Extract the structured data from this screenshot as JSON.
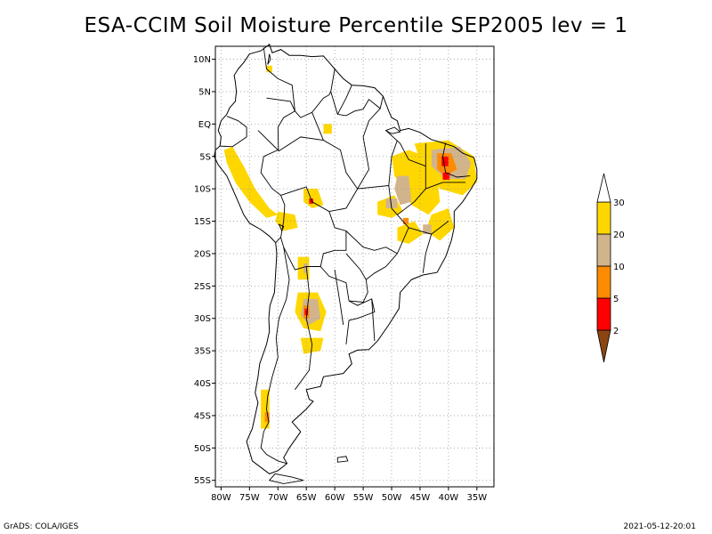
{
  "title": "ESA-CCIM Soil Moisture Percentile SEP2005 lev = 1",
  "footer": {
    "left": "GrADS: COLA/IGES",
    "right": "2021-05-12-20:01"
  },
  "chart_data": {
    "type": "heatmap",
    "title": "ESA-CCIM Soil Moisture Percentile SEP2005 lev = 1",
    "xlim": [
      -81,
      -32
    ],
    "ylim": [
      -56,
      12
    ],
    "grid": true,
    "x_ticks": [
      {
        "value": -80,
        "label": "80W"
      },
      {
        "value": -75,
        "label": "75W"
      },
      {
        "value": -70,
        "label": "70W"
      },
      {
        "value": -65,
        "label": "65W"
      },
      {
        "value": -60,
        "label": "60W"
      },
      {
        "value": -55,
        "label": "55W"
      },
      {
        "value": -50,
        "label": "50W"
      },
      {
        "value": -45,
        "label": "45W"
      },
      {
        "value": -40,
        "label": "40W"
      },
      {
        "value": -35,
        "label": "35W"
      }
    ],
    "y_ticks": [
      {
        "value": 10,
        "label": "10N"
      },
      {
        "value": 5,
        "label": "5N"
      },
      {
        "value": 0,
        "label": "EQ"
      },
      {
        "value": -5,
        "label": "5S"
      },
      {
        "value": -10,
        "label": "10S"
      },
      {
        "value": -15,
        "label": "15S"
      },
      {
        "value": -20,
        "label": "20S"
      },
      {
        "value": -25,
        "label": "25S"
      },
      {
        "value": -30,
        "label": "30S"
      },
      {
        "value": -35,
        "label": "35S"
      },
      {
        "value": -40,
        "label": "40S"
      },
      {
        "value": -45,
        "label": "45S"
      },
      {
        "value": -50,
        "label": "50S"
      },
      {
        "value": -55,
        "label": "55S"
      }
    ],
    "legend": {
      "placement": "right",
      "levels": [
        "2",
        "5",
        "10",
        "20",
        "30"
      ],
      "colors": [
        "#8b4513",
        "#ff0000",
        "#ff8c00",
        "#d2b48c",
        "#ffd700",
        "#ffffff"
      ]
    },
    "colors": {
      "gt20": "#ffd700",
      "10-20": "#d2b48c",
      "5-10": "#ff8c00",
      "2-5": "#ff0000",
      "lt2": "#8b4513"
    },
    "regions": [
      {
        "cls": "gt20",
        "poly": [
          [
            -79.5,
            -4
          ],
          [
            -78,
            -3.5
          ],
          [
            -76,
            -6.5
          ],
          [
            -74,
            -10
          ],
          [
            -71.5,
            -13
          ],
          [
            -70,
            -14
          ],
          [
            -72,
            -14.5
          ],
          [
            -75,
            -12
          ],
          [
            -77.5,
            -9
          ],
          [
            -79,
            -6
          ]
        ]
      },
      {
        "cls": "gt20",
        "poly": [
          [
            -70,
            -13.5
          ],
          [
            -67,
            -14
          ],
          [
            -66.5,
            -16
          ],
          [
            -69,
            -16.5
          ],
          [
            -70.5,
            -15
          ]
        ]
      },
      {
        "cls": "gt20",
        "poly": [
          [
            -65.5,
            -10
          ],
          [
            -63,
            -10
          ],
          [
            -62,
            -12.5
          ],
          [
            -64,
            -13
          ],
          [
            -65.5,
            -12
          ]
        ]
      },
      {
        "cls": "gt20",
        "poly": [
          [
            -52.5,
            -12
          ],
          [
            -49.5,
            -11
          ],
          [
            -48,
            -13.5
          ],
          [
            -50,
            -14.5
          ],
          [
            -52.5,
            -14
          ]
        ]
      },
      {
        "cls": "gt20",
        "poly": [
          [
            -50,
            -5
          ],
          [
            -47,
            -4
          ],
          [
            -44,
            -5
          ],
          [
            -42,
            -8
          ],
          [
            -41.5,
            -12
          ],
          [
            -43.5,
            -14
          ],
          [
            -46.5,
            -12.5
          ],
          [
            -48,
            -10
          ],
          [
            -49.5,
            -8
          ]
        ]
      },
      {
        "cls": "gt20",
        "poly": [
          [
            -43,
            -14
          ],
          [
            -40,
            -13
          ],
          [
            -39,
            -16
          ],
          [
            -41.5,
            -18
          ],
          [
            -44,
            -16.5
          ]
        ]
      },
      {
        "cls": "gt20",
        "poly": [
          [
            -49,
            -16
          ],
          [
            -46,
            -15
          ],
          [
            -44.5,
            -17
          ],
          [
            -47,
            -18.5
          ],
          [
            -49,
            -18
          ]
        ]
      },
      {
        "cls": "gt20",
        "poly": [
          [
            -46,
            -3
          ],
          [
            -40,
            -2.5
          ],
          [
            -35.5,
            -5
          ],
          [
            -35,
            -9
          ],
          [
            -37.5,
            -11
          ],
          [
            -41.5,
            -10
          ],
          [
            -44.5,
            -7
          ]
        ]
      },
      {
        "cls": "gt20",
        "poly": [
          [
            -66.5,
            -26
          ],
          [
            -63,
            -26
          ],
          [
            -61.5,
            -29
          ],
          [
            -62.5,
            -32
          ],
          [
            -65.5,
            -31.5
          ],
          [
            -67,
            -29
          ]
        ]
      },
      {
        "cls": "gt20",
        "poly": [
          [
            -66,
            -33
          ],
          [
            -62,
            -33
          ],
          [
            -62.5,
            -35
          ],
          [
            -65.5,
            -35.5
          ]
        ]
      },
      {
        "cls": "gt20",
        "poly": [
          [
            -66.5,
            -20.5
          ],
          [
            -64.5,
            -20.5
          ],
          [
            -64.5,
            -24
          ],
          [
            -66.5,
            -24
          ]
        ]
      },
      {
        "cls": "gt20",
        "poly": [
          [
            -73,
            -41
          ],
          [
            -71.5,
            -41
          ],
          [
            -71.5,
            -47
          ],
          [
            -73,
            -47
          ]
        ]
      },
      {
        "cls": "gt20",
        "poly": [
          [
            -62,
            0
          ],
          [
            -60.5,
            0
          ],
          [
            -60.5,
            -1.5
          ],
          [
            -62,
            -1.5
          ]
        ]
      },
      {
        "cls": "gt20",
        "poly": [
          [
            -72,
            9
          ],
          [
            -71,
            9
          ],
          [
            -71,
            8
          ],
          [
            -72,
            8
          ]
        ]
      },
      {
        "cls": "10-20",
        "poly": [
          [
            -49,
            -8
          ],
          [
            -47,
            -8
          ],
          [
            -46.5,
            -12
          ],
          [
            -48.5,
            -12.5
          ],
          [
            -49.5,
            -10
          ]
        ]
      },
      {
        "cls": "10-20",
        "poly": [
          [
            -51,
            -11.5
          ],
          [
            -49,
            -11.5
          ],
          [
            -49,
            -13
          ],
          [
            -51,
            -13
          ]
        ]
      },
      {
        "cls": "10-20",
        "poly": [
          [
            -43,
            -4
          ],
          [
            -38,
            -3.5
          ],
          [
            -36,
            -6
          ],
          [
            -37,
            -8.5
          ],
          [
            -40.5,
            -8.5
          ],
          [
            -43,
            -6.5
          ]
        ]
      },
      {
        "cls": "10-20",
        "poly": [
          [
            -44.5,
            -15.5
          ],
          [
            -43,
            -15.5
          ],
          [
            -43,
            -17
          ],
          [
            -44.5,
            -17
          ]
        ]
      },
      {
        "cls": "10-20",
        "poly": [
          [
            -65.5,
            -27
          ],
          [
            -63,
            -27
          ],
          [
            -62.5,
            -30
          ],
          [
            -64.5,
            -31
          ],
          [
            -66,
            -29.5
          ]
        ]
      },
      {
        "cls": "10-20",
        "poly": [
          [
            -65.5,
            -21.5
          ],
          [
            -64.8,
            -21.5
          ],
          [
            -64.8,
            -23
          ],
          [
            -65.5,
            -23
          ]
        ]
      },
      {
        "cls": "5-10",
        "poly": [
          [
            -42,
            -4.5
          ],
          [
            -39.5,
            -4.5
          ],
          [
            -38.5,
            -7
          ],
          [
            -40.5,
            -8
          ],
          [
            -42,
            -7
          ]
        ]
      },
      {
        "cls": "5-10",
        "poly": [
          [
            -65.5,
            -28
          ],
          [
            -64.5,
            -28
          ],
          [
            -64.5,
            -30
          ],
          [
            -65.5,
            -30
          ]
        ]
      },
      {
        "cls": "5-10",
        "poly": [
          [
            -72.3,
            -44.5
          ],
          [
            -71.5,
            -44.5
          ],
          [
            -71.5,
            -46
          ],
          [
            -72.3,
            -46
          ]
        ]
      },
      {
        "cls": "5-10",
        "poly": [
          [
            -48,
            -14.5
          ],
          [
            -47,
            -14.5
          ],
          [
            -47,
            -15.5
          ],
          [
            -48,
            -15.5
          ]
        ]
      },
      {
        "cls": "2-5",
        "poly": [
          [
            -41.2,
            -5
          ],
          [
            -40,
            -5
          ],
          [
            -40,
            -6.5
          ],
          [
            -41.2,
            -6.5
          ]
        ]
      },
      {
        "cls": "2-5",
        "poly": [
          [
            -41,
            -7.5
          ],
          [
            -39.8,
            -7.5
          ],
          [
            -39.8,
            -8.6
          ],
          [
            -41,
            -8.6
          ]
        ]
      },
      {
        "cls": "2-5",
        "poly": [
          [
            -64.5,
            -11.5
          ],
          [
            -63.8,
            -11.5
          ],
          [
            -63.8,
            -12.3
          ],
          [
            -64.5,
            -12.3
          ]
        ]
      },
      {
        "cls": "2-5",
        "poly": [
          [
            -65.3,
            -28.5
          ],
          [
            -64.7,
            -28.5
          ],
          [
            -64.7,
            -29.5
          ],
          [
            -65.3,
            -29.5
          ]
        ]
      }
    ]
  }
}
